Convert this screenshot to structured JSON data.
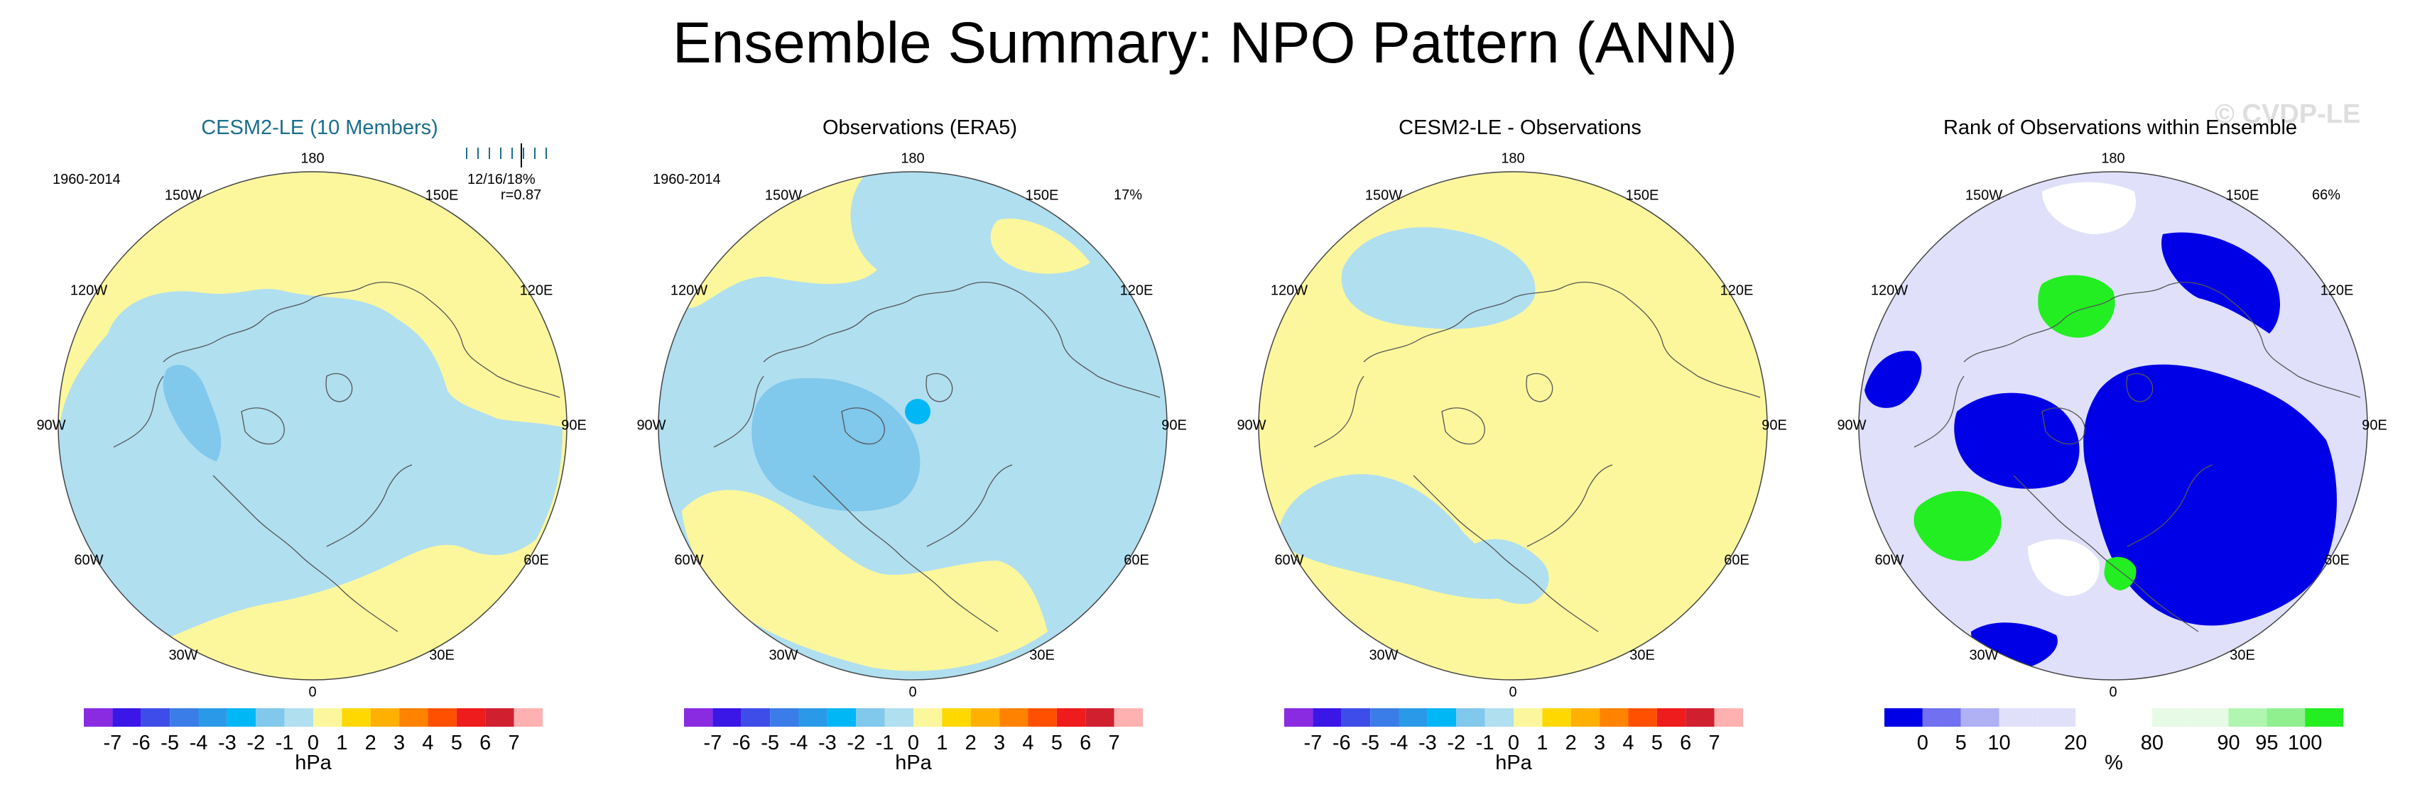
{
  "title": "Ensemble Summary: NPO Pattern (ANN)",
  "watermark": "© CVDP-LE",
  "chart_data": [
    {
      "type": "heatmap",
      "title": "CESM2-LE (10 Members)",
      "period": "1960-2014",
      "stat_line1": "12/16/18%",
      "stat_line2": "r=0.87",
      "ensemble_ticks": 8,
      "longitude_labels": [
        "180",
        "150E",
        "120E",
        "90E",
        "60E",
        "30E",
        "0",
        "30W",
        "60W",
        "90W",
        "120W",
        "150W"
      ],
      "colorbar": {
        "units": "hPa",
        "colors": [
          "#8a2be2",
          "#3a17e6",
          "#3f4de8",
          "#3b7de8",
          "#2a9ae8",
          "#00b7f5",
          "#80c8ec",
          "#b0dff0",
          "#fcf79d",
          "#ffd800",
          "#ffb000",
          "#ff8300",
          "#ff5000",
          "#ee1c1c",
          "#d01f2f",
          "#ffb0b0"
        ],
        "labels": [
          "-7",
          "-6",
          "-5",
          "-4",
          "-3",
          "-2",
          "-1",
          "0",
          "1",
          "2",
          "3",
          "4",
          "5",
          "6",
          "7"
        ]
      }
    },
    {
      "type": "heatmap",
      "title": "Observations (ERA5)",
      "period": "1960-2014",
      "percent": "17%",
      "longitude_labels": [
        "180",
        "150E",
        "120E",
        "90E",
        "60E",
        "30E",
        "0",
        "30W",
        "60W",
        "90W",
        "120W",
        "150W"
      ],
      "colorbar": {
        "units": "hPa",
        "colors": [
          "#8a2be2",
          "#3a17e6",
          "#3f4de8",
          "#3b7de8",
          "#2a9ae8",
          "#00b7f5",
          "#80c8ec",
          "#b0dff0",
          "#fcf79d",
          "#ffd800",
          "#ffb000",
          "#ff8300",
          "#ff5000",
          "#ee1c1c",
          "#d01f2f",
          "#ffb0b0"
        ],
        "labels": [
          "-7",
          "-6",
          "-5",
          "-4",
          "-3",
          "-2",
          "-1",
          "0",
          "1",
          "2",
          "3",
          "4",
          "5",
          "6",
          "7"
        ]
      }
    },
    {
      "type": "heatmap",
      "title": "CESM2-LE - Observations",
      "longitude_labels": [
        "180",
        "150E",
        "120E",
        "90E",
        "60E",
        "30E",
        "0",
        "30W",
        "60W",
        "90W",
        "120W",
        "150W"
      ],
      "colorbar": {
        "units": "hPa",
        "colors": [
          "#8a2be2",
          "#3a17e6",
          "#3f4de8",
          "#3b7de8",
          "#2a9ae8",
          "#00b7f5",
          "#80c8ec",
          "#b0dff0",
          "#fcf79d",
          "#ffd800",
          "#ffb000",
          "#ff8300",
          "#ff5000",
          "#ee1c1c",
          "#d01f2f",
          "#ffb0b0"
        ],
        "labels": [
          "-7",
          "-6",
          "-5",
          "-4",
          "-3",
          "-2",
          "-1",
          "0",
          "1",
          "2",
          "3",
          "4",
          "5",
          "6",
          "7"
        ]
      }
    },
    {
      "type": "heatmap",
      "title": "Rank of Observations within Ensemble",
      "percent": "66%",
      "longitude_labels": [
        "180",
        "150E",
        "120E",
        "90E",
        "60E",
        "30E",
        "0",
        "30W",
        "60W",
        "90W",
        "120W",
        "150W"
      ],
      "colorbar": {
        "units": "%",
        "colors": [
          "#0000e6",
          "#7070f0",
          "#b0b0f5",
          "#e0e0fa",
          "#e0e0fa",
          "#ffffff",
          "#ffffff",
          "#e6fae6",
          "#e6fae6",
          "#b0f5b0",
          "#90f090",
          "#22ee22"
        ],
        "labels": [
          "0",
          "5",
          "10",
          "20",
          "80",
          "90",
          "95",
          "100"
        ],
        "label_boundaries": [
          1,
          2,
          3,
          5,
          7,
          9,
          10,
          11
        ]
      }
    }
  ]
}
